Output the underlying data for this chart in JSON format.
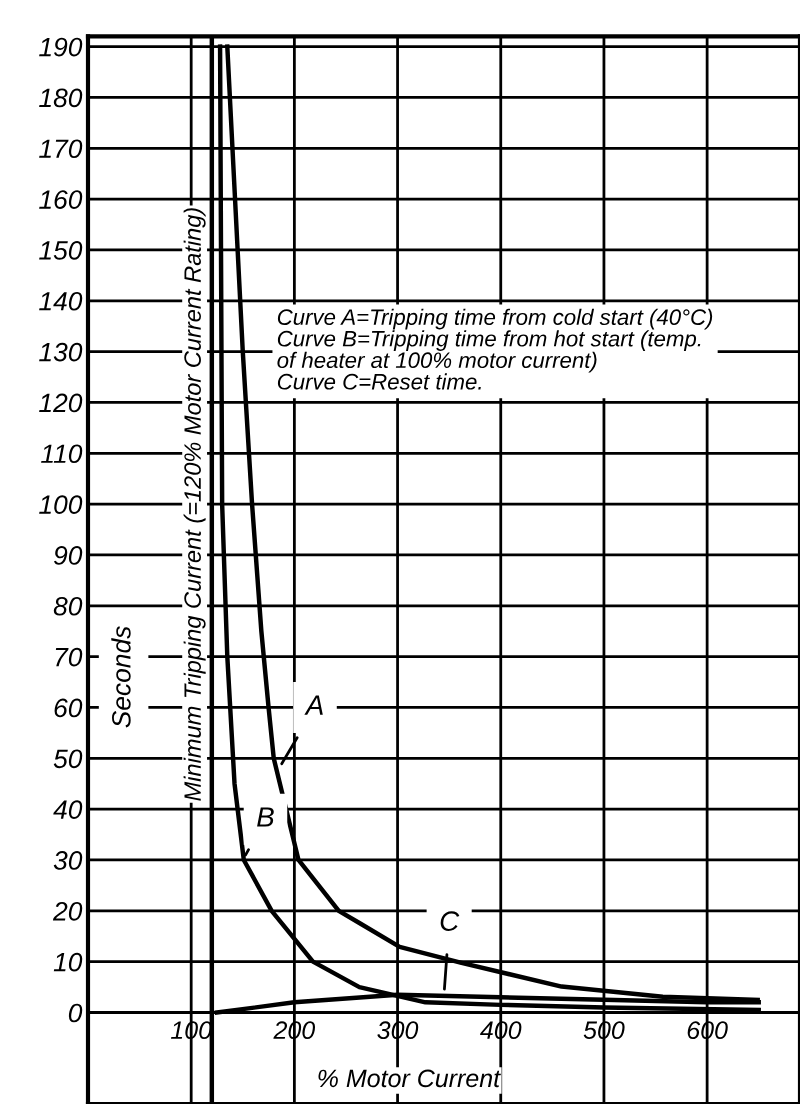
{
  "chart_data": {
    "type": "line",
    "xlabel": "% Motor Current",
    "ylabel": "Seconds",
    "xlim": [
      0,
      690
    ],
    "ylim": [
      -18,
      192
    ],
    "xticks": [
      100,
      200,
      300,
      400,
      500,
      600
    ],
    "yticks": [
      0,
      10,
      20,
      30,
      40,
      50,
      60,
      70,
      80,
      90,
      100,
      110,
      120,
      130,
      140,
      150,
      160,
      170,
      180,
      190
    ],
    "grid": true,
    "legend": false,
    "marker": "none",
    "line_style": "solid",
    "series": [
      {
        "color": "#000000",
        "x": [
          135,
          150,
          159,
          168,
          175,
          180,
          204,
          243,
          263,
          302,
          361,
          459,
          557,
          649
        ],
        "values": [
          190,
          130,
          100,
          75,
          60,
          50,
          30,
          20,
          17.6,
          12.9,
          9.8,
          5.1,
          3.1,
          2.5
        ]
      },
      {
        "color": "#000000",
        "x": [
          128,
          130,
          135,
          142,
          151,
          178,
          218,
          263,
          327,
          400,
          500,
          650
        ],
        "values": [
          190,
          100,
          70,
          45,
          30,
          20,
          10,
          5,
          2,
          1.5,
          1,
          0.5
        ]
      },
      {
        "color": "#000000",
        "x": [
          125,
          200,
          300,
          400,
          500,
          600,
          650
        ],
        "values": [
          0,
          2,
          3.5,
          3,
          2.5,
          2,
          2
        ]
      }
    ],
    "ref_lines": [
      {
        "axis": "x",
        "value": 120,
        "label": "Minimum Tripping Current (=120% Motor Current Rating)",
        "color": "#000000"
      }
    ],
    "annotations": [
      {
        "text": "A",
        "x": 185,
        "y": 48
      },
      {
        "text": "B",
        "x": 150,
        "y": 30
      },
      {
        "text": "C",
        "x": 345,
        "y": 3.5
      },
      "Curve A=Tripping time from cold start (40°C)\nCurve B=Tripping time from hot start (temp.\nof heater at 100% motor current)\nCurve C=Reset time."
    ]
  }
}
